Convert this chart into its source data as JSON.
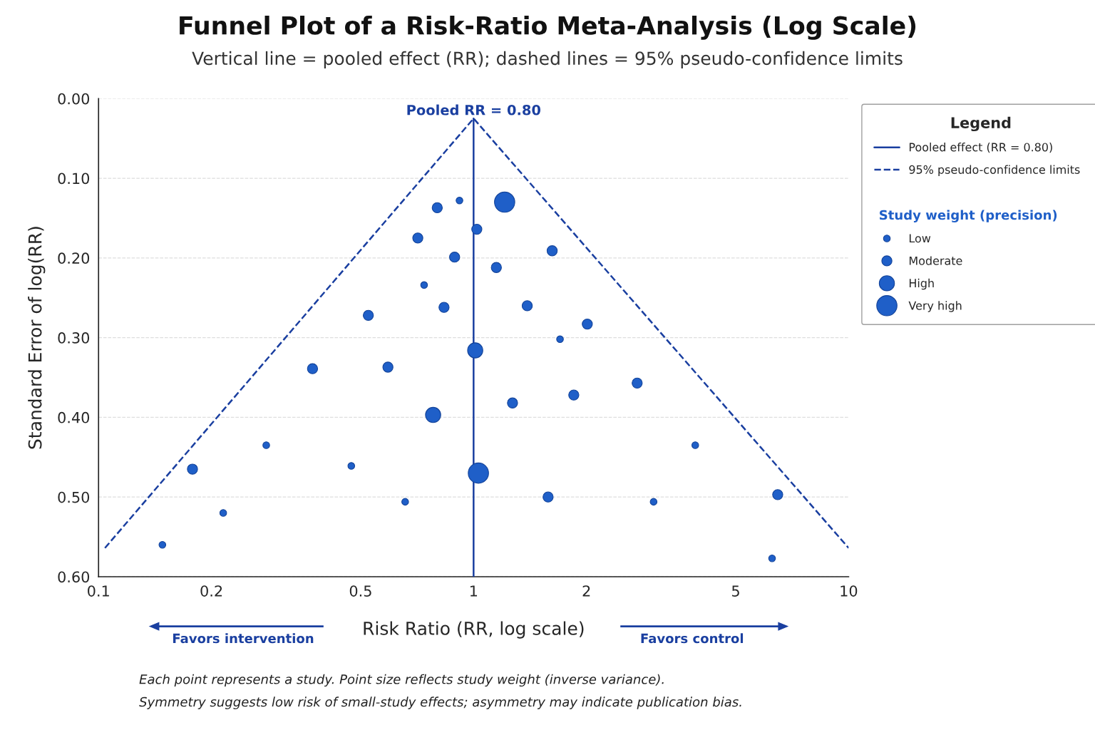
{
  "chart_data": {
    "type": "bubble",
    "title": "Funnel Plot of a Risk-Ratio Meta-Analysis (Log Scale)",
    "subtitle": "Vertical line = pooled effect (RR); dashed lines = 95% pseudo-confidence limits",
    "xlabel": "Risk Ratio (RR, log scale)",
    "ylabel": "Standard Error of log(RR)",
    "legend_title": "Legend",
    "log": "x",
    "xlim": [
      0.1,
      10
    ],
    "xticks": [
      0.1,
      0.2,
      0.5,
      1,
      2,
      5,
      10
    ],
    "ylim": [
      0.6,
      0.0
    ],
    "yticks": [
      {
        "value": 0.0,
        "label": "0.00"
      },
      {
        "value": 0.1,
        "label": "0.10"
      },
      {
        "value": 0.2,
        "label": "0.20"
      },
      {
        "value": 0.3,
        "label": "0.30"
      },
      {
        "value": 0.4,
        "label": "0.40"
      },
      {
        "value": 0.5,
        "label": "0.50"
      },
      {
        "value": 0.6,
        "label": "0.60"
      }
    ],
    "grid": "y",
    "legend": "top right",
    "size_legend": [
      {
        "value": 0.11,
        "label": "Low"
      },
      {
        "value": 0.25,
        "label": "Moderate"
      },
      {
        "value": 0.56,
        "label": "High"
      },
      {
        "value": 1,
        "label": "Very high"
      }
    ],
    "series": [
      {
        "type": "line",
        "name": "Pooled effect (RR = 0.80)",
        "color": "#1a3fa0",
        "line_style": "solid",
        "x": [
          1,
          1
        ],
        "values": [
          0.025,
          0.6
        ]
      },
      {
        "type": "line",
        "name": "95% pseudo-confidence limits",
        "color": "#1a3fa0",
        "line_style": "dashed",
        "x": [
          0.104,
          1,
          10
        ],
        "values": [
          0.564,
          0.025,
          0.564
        ]
      },
      {
        "name": "Study weight (precision)",
        "color": "#1f5fc8",
        "marker": "circle",
        "x": [
          0.148,
          0.178,
          0.215,
          0.28,
          0.372,
          0.472,
          0.524,
          0.591,
          0.657,
          0.71,
          0.738,
          0.78,
          0.8,
          0.834,
          0.89,
          0.917,
          1.01,
          1.02,
          1.03,
          1.15,
          1.21,
          1.27,
          1.39,
          1.58,
          1.62,
          1.7,
          1.85,
          2.01,
          2.73,
          3.02,
          3.9,
          6.25,
          6.47
        ],
        "values": [
          0.56,
          0.465,
          0.52,
          0.435,
          0.339,
          0.461,
          0.272,
          0.337,
          0.506,
          0.175,
          0.234,
          0.397,
          0.137,
          0.262,
          0.199,
          0.128,
          0.316,
          0.164,
          0.47,
          0.212,
          0.13,
          0.382,
          0.26,
          0.5,
          0.191,
          0.302,
          0.372,
          0.283,
          0.357,
          0.506,
          0.435,
          0.577,
          0.497
        ],
        "sizes": [
          0.11,
          0.25,
          0.11,
          0.11,
          0.25,
          0.11,
          0.25,
          0.25,
          0.11,
          0.25,
          0.11,
          0.56,
          0.25,
          0.25,
          0.25,
          0.11,
          0.56,
          0.25,
          1,
          0.25,
          1,
          0.25,
          0.25,
          0.25,
          0.25,
          0.11,
          0.25,
          0.25,
          0.25,
          0.11,
          0.11,
          0.11,
          0.25
        ]
      }
    ],
    "annotations": [
      "Pooled RR = 0.80",
      "Favors intervention",
      "Favors control",
      "Each point represents a study. Point size reflects study weight (inverse variance).",
      "Symmetry suggests low risk of small-study effects; asymmetry may indicate publication bias."
    ]
  }
}
